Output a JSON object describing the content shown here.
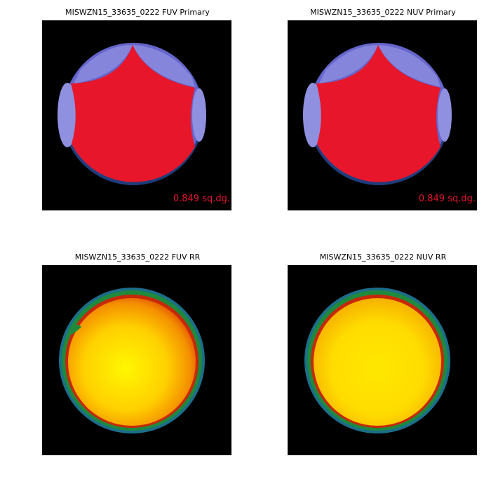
{
  "panels": [
    {
      "title": "MISWZN15_33635_0222 FUV Primary",
      "annotation": "0.849 sq.dg."
    },
    {
      "title": "MISWZN15_33635_0222 NUV Primary",
      "annotation": "0.849 sq.dg."
    },
    {
      "title": "MISWZN15_33635_0222 FUV RR"
    },
    {
      "title": "MISWZN15_33635_0222 NUV RR"
    }
  ]
}
